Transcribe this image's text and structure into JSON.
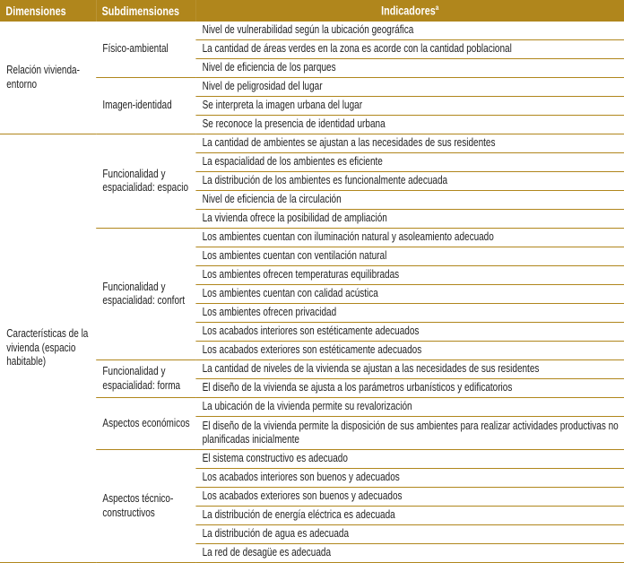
{
  "header": {
    "dimensiones": "Dimensiones",
    "subdimensiones": "Subdimensiones",
    "indicadores": "Indicadores",
    "indicadores_note": "a"
  },
  "colors": {
    "accent": "#b0861c"
  },
  "dimensions": [
    {
      "label": "Relación vivienda-entorno",
      "subdimensions": [
        {
          "label": "Físico-ambiental",
          "indicators": [
            "Nivel de vulnerabilidad según la ubicación geográfica",
            "La cantidad de áreas verdes en la zona es acorde con la cantidad poblacional",
            "Nivel de eficiencia de los parques"
          ]
        },
        {
          "label": "Imagen-identidad",
          "indicators": [
            "Nivel de peligrosidad del lugar",
            "Se interpreta la imagen urbana del lugar",
            "Se reconoce la presencia de identidad urbana"
          ]
        }
      ]
    },
    {
      "label": "Características de la vivienda (espacio habitable)",
      "subdimensions": [
        {
          "label": "Funcionalidad y espacialidad: espacio",
          "indicators": [
            "La cantidad de ambientes se ajustan a las necesidades de sus residentes",
            "La espacialidad de los ambientes es eficiente",
            "La distribución de los ambientes es funcionalmente adecuada",
            "Nivel de eficiencia de la circulación",
            "La vivienda ofrece la posibilidad de ampliación"
          ]
        },
        {
          "label": "Funcionalidad y espacialidad: confort",
          "indicators": [
            "Los ambientes cuentan con iluminación natural y asoleamiento adecuado",
            "Los ambientes cuentan con ventilación natural",
            "Los ambientes ofrecen temperaturas equilibradas",
            "Los ambientes cuentan con calidad acústica",
            "Los ambientes ofrecen privacidad",
            "Los acabados interiores son estéticamente adecuados",
            "Los acabados exteriores son estéticamente adecuados"
          ]
        },
        {
          "label": "Funcionalidad y espacialidad: forma",
          "indicators": [
            "La cantidad de niveles de la vivienda se ajustan a las necesidades de sus residentes",
            "El diseño de la vivienda se ajusta a los parámetros urbanísticos y edificatorios"
          ]
        },
        {
          "label": "Aspectos económicos",
          "indicators": [
            "La ubicación de la vivienda permite su revalorización",
            "El diseño de la vivienda permite la disposición de sus ambientes para realizar actividades productivas no planificadas inicialmente"
          ]
        },
        {
          "label": "Aspectos técnico-constructivos",
          "indicators": [
            "El sistema constructivo es adecuado",
            "Los acabados interiores son buenos y adecuados",
            "Los acabados exteriores son buenos y adecuados",
            "La distribución de energía eléctrica es adecuada",
            "La distribución de agua es adecuada",
            "La red de desagüe es adecuada"
          ]
        }
      ]
    }
  ]
}
